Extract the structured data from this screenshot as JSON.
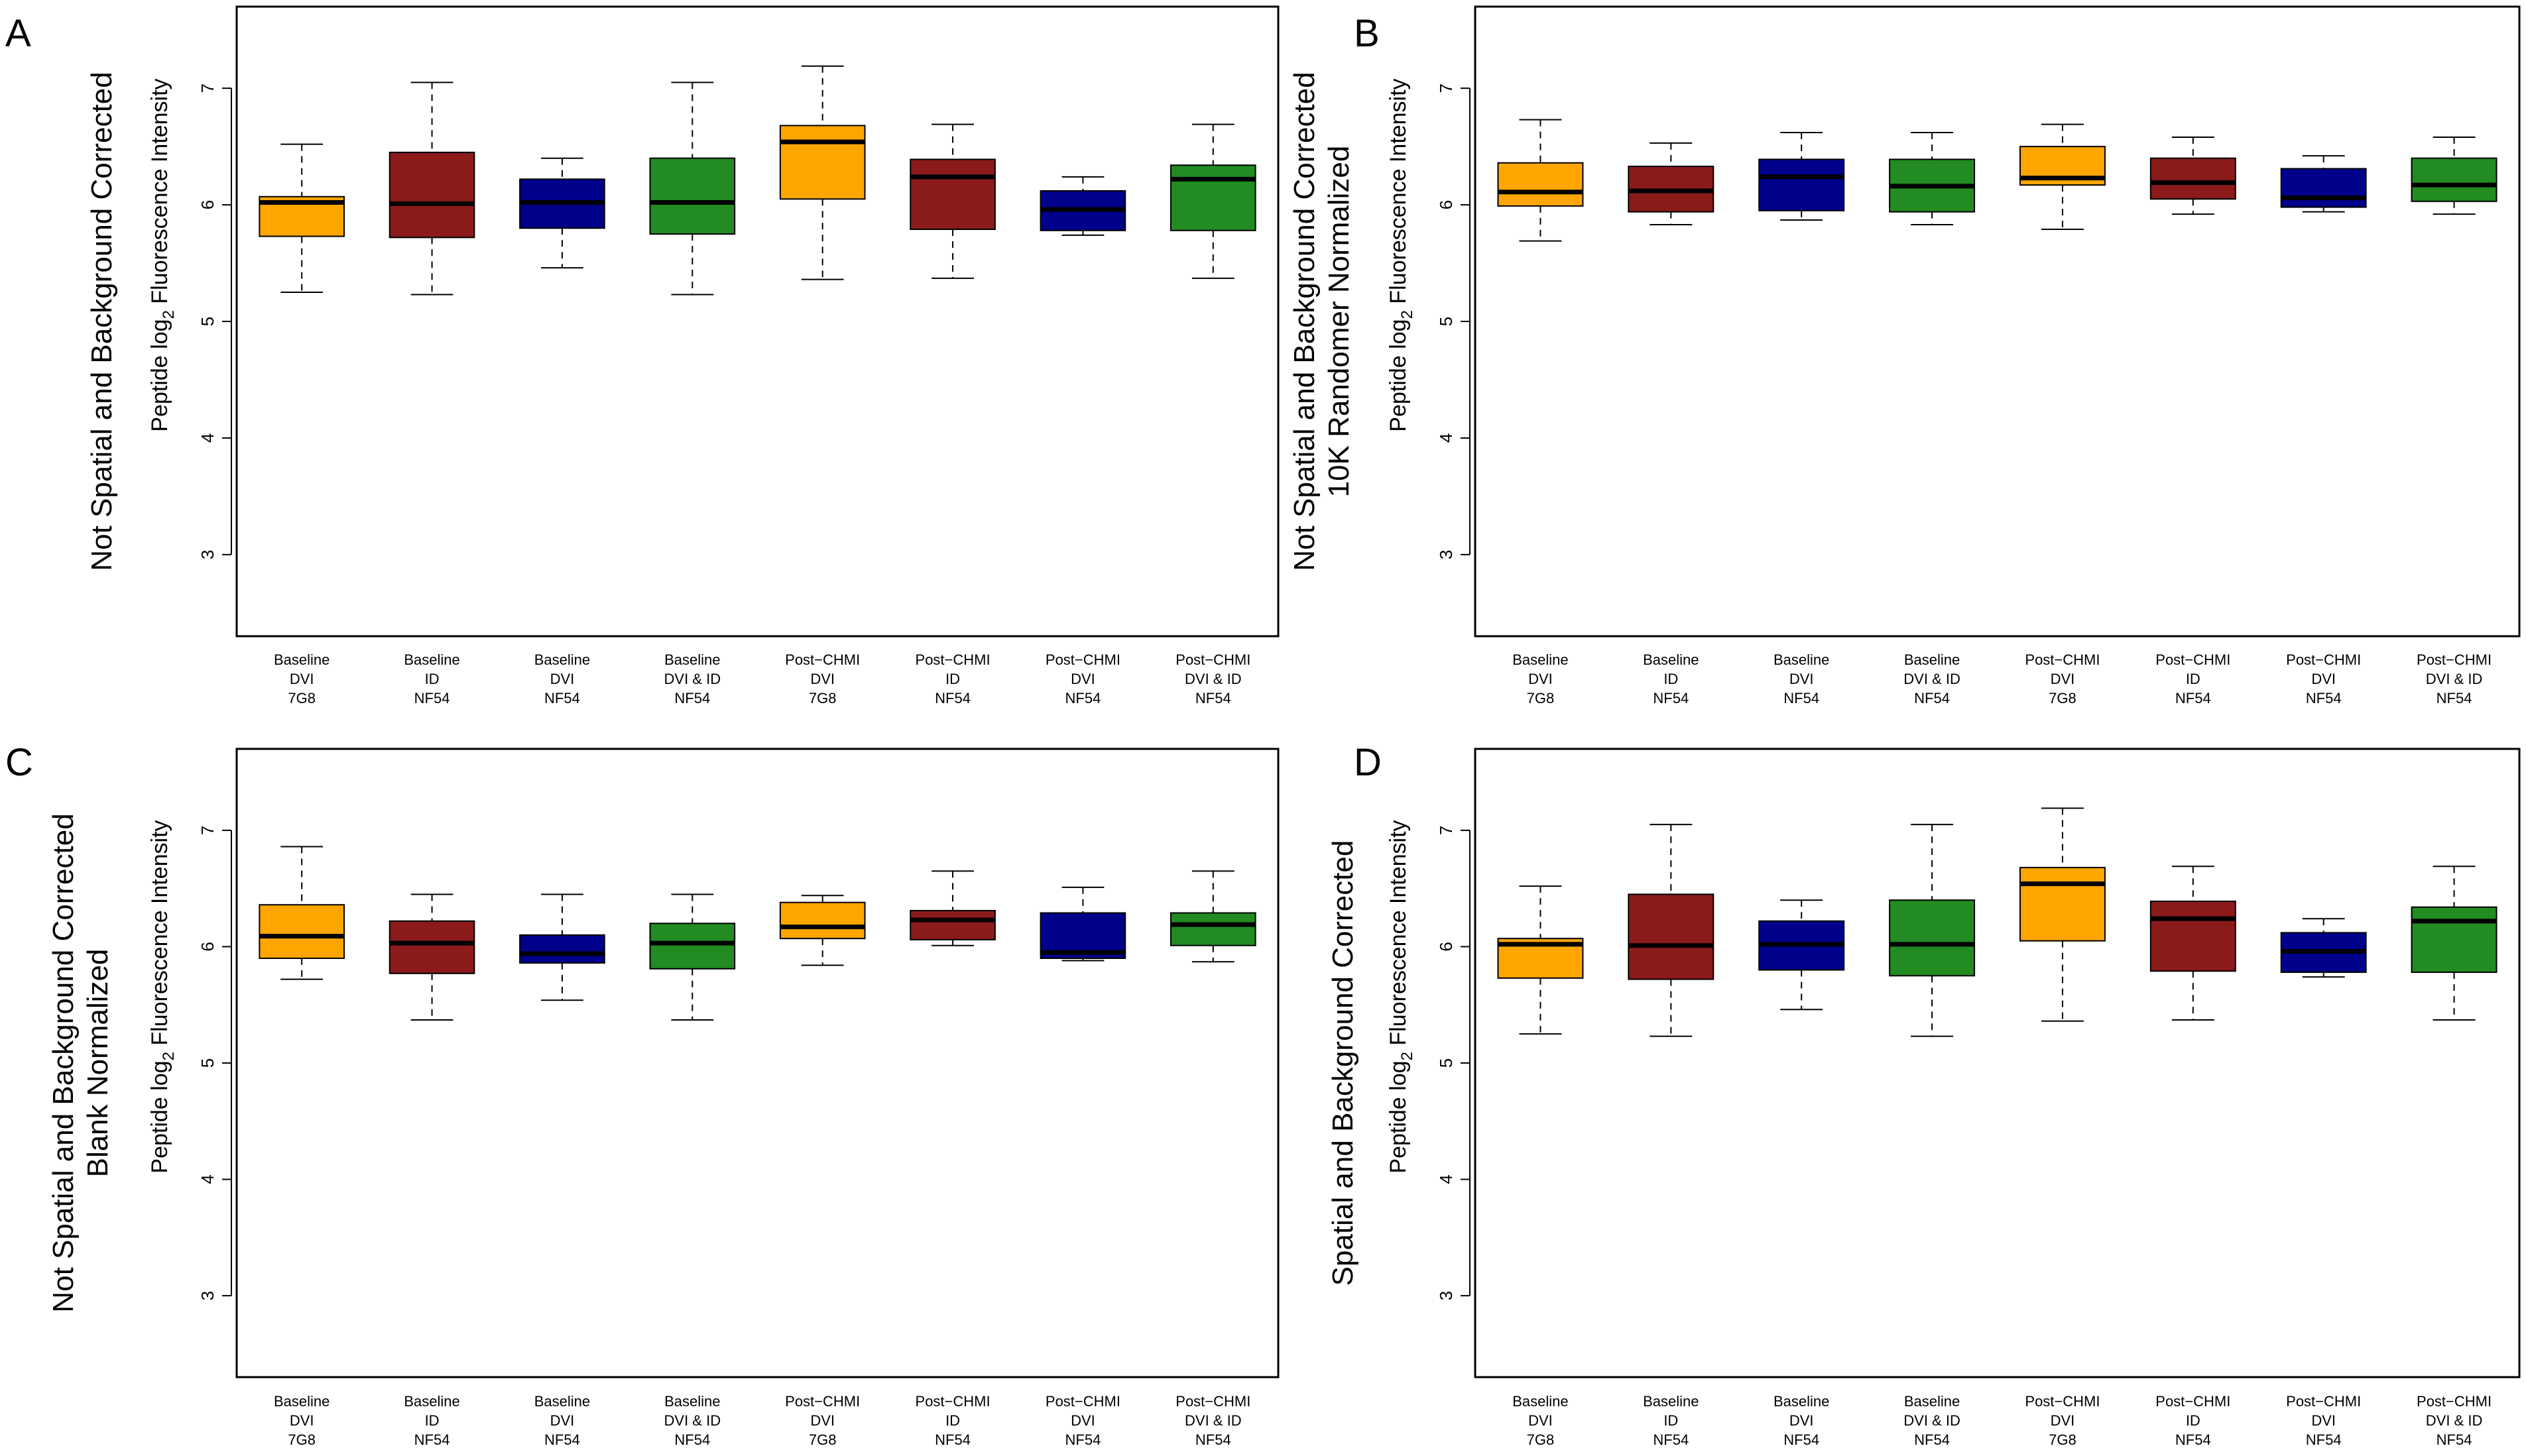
{
  "chart_data": [
    {
      "panel": "A",
      "type": "boxplot",
      "title_lines": [
        "Not Spatial and Background Corrected"
      ],
      "ylabel_parts": [
        "Peptide log",
        "2",
        " Fluorescence Intensity"
      ],
      "ylim": [
        2.3,
        7.7
      ],
      "yticks": [
        "3",
        "4",
        "5",
        "6",
        "7"
      ],
      "categories": [
        [
          "Baseline",
          "DVI",
          "7G8"
        ],
        [
          "Baseline",
          "ID",
          "NF54"
        ],
        [
          "Baseline",
          "DVI",
          "NF54"
        ],
        [
          "Baseline",
          "DVI & ID",
          "NF54"
        ],
        [
          "Post−CHMI",
          "DVI",
          "7G8"
        ],
        [
          "Post−CHMI",
          "ID",
          "NF54"
        ],
        [
          "Post−CHMI",
          "DVI",
          "NF54"
        ],
        [
          "Post−CHMI",
          "DVI & ID",
          "NF54"
        ]
      ],
      "colors": [
        "#FFA500",
        "#8B1A1A",
        "#00008B",
        "#228B22",
        "#FFA500",
        "#8B1A1A",
        "#00008B",
        "#228B22"
      ],
      "boxes": [
        {
          "min": 5.25,
          "q1": 5.73,
          "median": 6.02,
          "q3": 6.07,
          "max": 6.52
        },
        {
          "min": 5.23,
          "q1": 5.72,
          "median": 6.01,
          "q3": 6.45,
          "max": 7.05
        },
        {
          "min": 5.46,
          "q1": 5.8,
          "median": 6.02,
          "q3": 6.22,
          "max": 6.4
        },
        {
          "min": 5.23,
          "q1": 5.75,
          "median": 6.02,
          "q3": 6.4,
          "max": 7.05
        },
        {
          "min": 5.36,
          "q1": 6.05,
          "median": 6.54,
          "q3": 6.68,
          "max": 7.19
        },
        {
          "min": 5.37,
          "q1": 5.79,
          "median": 6.24,
          "q3": 6.39,
          "max": 6.69
        },
        {
          "min": 5.74,
          "q1": 5.78,
          "median": 5.96,
          "q3": 6.12,
          "max": 6.24
        },
        {
          "min": 5.37,
          "q1": 5.78,
          "median": 6.22,
          "q3": 6.34,
          "max": 6.69
        }
      ]
    },
    {
      "panel": "B",
      "type": "boxplot",
      "title_lines": [
        "Not Spatial and Background Corrected",
        "10K Randomer Normalized"
      ],
      "ylabel_parts": [
        "Peptide log",
        "2",
        " Fluorescence Intensity"
      ],
      "ylim": [
        2.3,
        7.7
      ],
      "yticks": [
        "3",
        "4",
        "5",
        "6",
        "7"
      ],
      "categories": [
        [
          "Baseline",
          "DVI",
          "7G8"
        ],
        [
          "Baseline",
          "ID",
          "NF54"
        ],
        [
          "Baseline",
          "DVI",
          "NF54"
        ],
        [
          "Baseline",
          "DVI & ID",
          "NF54"
        ],
        [
          "Post−CHMI",
          "DVI",
          "7G8"
        ],
        [
          "Post−CHMI",
          "ID",
          "NF54"
        ],
        [
          "Post−CHMI",
          "DVI",
          "NF54"
        ],
        [
          "Post−CHMI",
          "DVI & ID",
          "NF54"
        ]
      ],
      "colors": [
        "#FFA500",
        "#8B1A1A",
        "#00008B",
        "#228B22",
        "#FFA500",
        "#8B1A1A",
        "#00008B",
        "#228B22"
      ],
      "boxes": [
        {
          "min": 5.69,
          "q1": 5.99,
          "median": 6.11,
          "q3": 6.36,
          "max": 6.73
        },
        {
          "min": 5.83,
          "q1": 5.94,
          "median": 6.12,
          "q3": 6.33,
          "max": 6.53
        },
        {
          "min": 5.87,
          "q1": 5.95,
          "median": 6.24,
          "q3": 6.39,
          "max": 6.62
        },
        {
          "min": 5.83,
          "q1": 5.94,
          "median": 6.16,
          "q3": 6.39,
          "max": 6.62
        },
        {
          "min": 5.79,
          "q1": 6.17,
          "median": 6.23,
          "q3": 6.5,
          "max": 6.69
        },
        {
          "min": 5.92,
          "q1": 6.05,
          "median": 6.19,
          "q3": 6.4,
          "max": 6.58
        },
        {
          "min": 5.94,
          "q1": 5.98,
          "median": 6.06,
          "q3": 6.31,
          "max": 6.42
        },
        {
          "min": 5.92,
          "q1": 6.03,
          "median": 6.17,
          "q3": 6.4,
          "max": 6.58
        }
      ]
    },
    {
      "panel": "C",
      "type": "boxplot",
      "title_lines": [
        "Not Spatial and Background Corrected",
        "Blank Normalized"
      ],
      "ylabel_parts": [
        "Peptide log",
        "2",
        " Fluorescence Intensity"
      ],
      "ylim": [
        2.3,
        7.7
      ],
      "yticks": [
        "3",
        "4",
        "5",
        "6",
        "7"
      ],
      "categories": [
        [
          "Baseline",
          "DVI",
          "7G8"
        ],
        [
          "Baseline",
          "ID",
          "NF54"
        ],
        [
          "Baseline",
          "DVI",
          "NF54"
        ],
        [
          "Baseline",
          "DVI & ID",
          "NF54"
        ],
        [
          "Post−CHMI",
          "DVI",
          "7G8"
        ],
        [
          "Post−CHMI",
          "ID",
          "NF54"
        ],
        [
          "Post−CHMI",
          "DVI",
          "NF54"
        ],
        [
          "Post−CHMI",
          "DVI & ID",
          "NF54"
        ]
      ],
      "colors": [
        "#FFA500",
        "#8B1A1A",
        "#00008B",
        "#228B22",
        "#FFA500",
        "#8B1A1A",
        "#00008B",
        "#228B22"
      ],
      "boxes": [
        {
          "min": 5.72,
          "q1": 5.9,
          "median": 6.09,
          "q3": 6.36,
          "max": 6.86
        },
        {
          "min": 5.37,
          "q1": 5.77,
          "median": 6.03,
          "q3": 6.22,
          "max": 6.45
        },
        {
          "min": 5.54,
          "q1": 5.86,
          "median": 5.94,
          "q3": 6.1,
          "max": 6.45
        },
        {
          "min": 5.37,
          "q1": 5.81,
          "median": 6.03,
          "q3": 6.2,
          "max": 6.45
        },
        {
          "min": 5.84,
          "q1": 6.07,
          "median": 6.17,
          "q3": 6.38,
          "max": 6.44
        },
        {
          "min": 6.01,
          "q1": 6.06,
          "median": 6.23,
          "q3": 6.31,
          "max": 6.65
        },
        {
          "min": 5.88,
          "q1": 5.9,
          "median": 5.95,
          "q3": 6.29,
          "max": 6.51
        },
        {
          "min": 5.87,
          "q1": 6.01,
          "median": 6.19,
          "q3": 6.29,
          "max": 6.65
        }
      ]
    },
    {
      "panel": "D",
      "type": "boxplot",
      "title_lines": [
        "Spatial and Background Corrected"
      ],
      "ylabel_parts": [
        "Peptide log",
        "2",
        " Fluorescence Intensity"
      ],
      "ylim": [
        2.3,
        7.7
      ],
      "yticks": [
        "3",
        "4",
        "5",
        "6",
        "7"
      ],
      "categories": [
        [
          "Baseline",
          "DVI",
          "7G8"
        ],
        [
          "Baseline",
          "ID",
          "NF54"
        ],
        [
          "Baseline",
          "DVI",
          "NF54"
        ],
        [
          "Baseline",
          "DVI & ID",
          "NF54"
        ],
        [
          "Post−CHMI",
          "DVI",
          "7G8"
        ],
        [
          "Post−CHMI",
          "ID",
          "NF54"
        ],
        [
          "Post−CHMI",
          "DVI",
          "NF54"
        ],
        [
          "Post−CHMI",
          "DVI & ID",
          "NF54"
        ]
      ],
      "colors": [
        "#FFA500",
        "#8B1A1A",
        "#00008B",
        "#228B22",
        "#FFA500",
        "#8B1A1A",
        "#00008B",
        "#228B22"
      ],
      "boxes": [
        {
          "min": 5.25,
          "q1": 5.73,
          "median": 6.02,
          "q3": 6.07,
          "max": 6.52
        },
        {
          "min": 5.23,
          "q1": 5.72,
          "median": 6.01,
          "q3": 6.45,
          "max": 7.05
        },
        {
          "min": 5.46,
          "q1": 5.8,
          "median": 6.02,
          "q3": 6.22,
          "max": 6.4
        },
        {
          "min": 5.23,
          "q1": 5.75,
          "median": 6.02,
          "q3": 6.4,
          "max": 7.05
        },
        {
          "min": 5.36,
          "q1": 6.05,
          "median": 6.54,
          "q3": 6.68,
          "max": 7.19
        },
        {
          "min": 5.37,
          "q1": 5.79,
          "median": 6.24,
          "q3": 6.39,
          "max": 6.69
        },
        {
          "min": 5.74,
          "q1": 5.78,
          "median": 5.96,
          "q3": 6.12,
          "max": 6.24
        },
        {
          "min": 5.37,
          "q1": 5.78,
          "median": 6.22,
          "q3": 6.34,
          "max": 6.69
        }
      ]
    }
  ]
}
